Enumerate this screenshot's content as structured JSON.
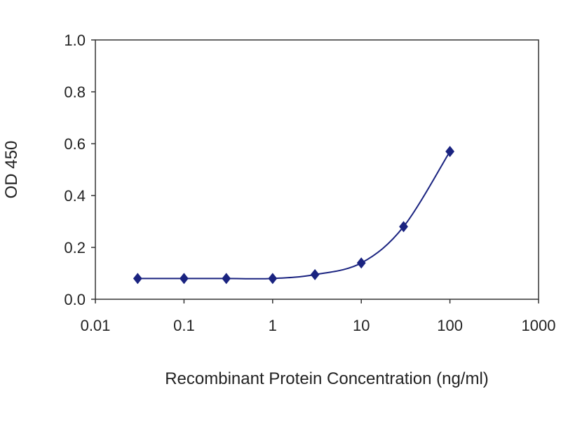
{
  "chart_data": {
    "type": "scatter",
    "title": "",
    "xlabel": "Recombinant Protein Concentration (ng/ml)",
    "ylabel": "OD 450",
    "x_scale": "log",
    "xlim": [
      0.01,
      1000
    ],
    "ylim": [
      0.0,
      1.0
    ],
    "x_ticks": [
      "0.01",
      "0.1",
      "1",
      "10",
      "100",
      "1000"
    ],
    "y_ticks": [
      "0.0",
      "0.2",
      "0.4",
      "0.6",
      "0.8",
      "1.0"
    ],
    "grid": "horizontal",
    "legend": "none",
    "series": [
      {
        "x": [
          0.03,
          0.1,
          0.3,
          1,
          3,
          10,
          30,
          100
        ],
        "y": [
          0.08,
          0.08,
          0.08,
          0.08,
          0.095,
          0.14,
          0.28,
          0.57
        ],
        "marker": "diamond",
        "line": "smooth"
      }
    ],
    "colors": {
      "series": "#1a2380",
      "gridline": "#222222",
      "axis": "#333333"
    }
  }
}
